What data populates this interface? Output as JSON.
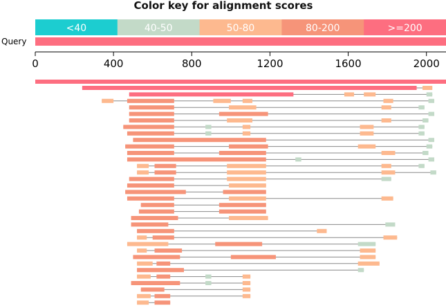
{
  "title": "Color key for alignment scores",
  "query_label": "Query",
  "colors": {
    "lt40": "#1ccdd0",
    "40_50": "#c3dac8",
    "50_80": "#fdb98f",
    "80_200": "#f69479",
    "ge200": "#fd6e80",
    "connector": "#888888",
    "axis": "#000000"
  },
  "legend": [
    {
      "label": "<40",
      "color_key": "lt40"
    },
    {
      "label": "40-50",
      "color_key": "40_50"
    },
    {
      "label": "50-80",
      "color_key": "50_80"
    },
    {
      "label": "80-200",
      "color_key": "80_200"
    },
    {
      "label": ">=200",
      "color_key": "ge200"
    }
  ],
  "chart_data": {
    "type": "alignment-map",
    "x_axis": {
      "min": 0,
      "max": 2100,
      "ticks": [
        0,
        400,
        800,
        1200,
        1600,
        2000
      ]
    },
    "query_length": 2100,
    "hits": [
      {
        "segments": [
          [
            0,
            2100,
            "ge200"
          ]
        ]
      },
      {
        "segments": [
          [
            240,
            1950,
            "ge200"
          ],
          [
            1980,
            2030,
            "50_80"
          ]
        ]
      },
      {
        "segments": [
          [
            480,
            1320,
            "ge200"
          ],
          [
            1580,
            1630,
            "50_80"
          ],
          [
            1680,
            1740,
            "50_80"
          ],
          [
            2000,
            2030,
            "40_50"
          ]
        ]
      },
      {
        "segments": [
          [
            340,
            400,
            "50_80"
          ],
          [
            470,
            710,
            "80_200"
          ],
          [
            910,
            1000,
            "50_80"
          ],
          [
            1060,
            1110,
            "50_80"
          ],
          [
            1780,
            1830,
            "50_80"
          ],
          [
            2010,
            2040,
            "40_50"
          ]
        ]
      },
      {
        "segments": [
          [
            480,
            710,
            "80_200"
          ],
          [
            990,
            1130,
            "50_80"
          ],
          [
            1770,
            1820,
            "50_80"
          ],
          [
            1960,
            1990,
            "40_50"
          ]
        ]
      },
      {
        "segments": [
          [
            480,
            710,
            "80_200"
          ],
          [
            940,
            1190,
            "80_200"
          ],
          [
            2010,
            2040,
            "40_50"
          ]
        ]
      },
      {
        "segments": [
          [
            480,
            710,
            "80_200"
          ],
          [
            980,
            1110,
            "50_80"
          ],
          [
            1770,
            1820,
            "50_80"
          ],
          [
            1980,
            2010,
            "40_50"
          ]
        ]
      },
      {
        "segments": [
          [
            450,
            710,
            "80_200"
          ],
          [
            870,
            900,
            "40_50"
          ],
          [
            1060,
            1100,
            "50_80"
          ],
          [
            1660,
            1730,
            "50_80"
          ],
          [
            1960,
            1990,
            "40_50"
          ]
        ]
      },
      {
        "segments": [
          [
            470,
            710,
            "80_200"
          ],
          [
            870,
            900,
            "40_50"
          ],
          [
            1060,
            1100,
            "50_80"
          ],
          [
            1660,
            1730,
            "50_80"
          ],
          [
            1960,
            1990,
            "40_50"
          ]
        ]
      },
      {
        "segments": [
          [
            500,
            1180,
            "80_200"
          ],
          [
            2010,
            2040,
            "40_50"
          ]
        ]
      },
      {
        "segments": [
          [
            460,
            710,
            "80_200"
          ],
          [
            990,
            1190,
            "80_200"
          ],
          [
            1650,
            1740,
            "50_80"
          ],
          [
            2000,
            2030,
            "40_50"
          ]
        ]
      },
      {
        "segments": [
          [
            470,
            710,
            "80_200"
          ],
          [
            940,
            1180,
            "80_200"
          ],
          [
            1770,
            1840,
            "50_80"
          ],
          [
            1980,
            2010,
            "40_50"
          ]
        ]
      },
      {
        "segments": [
          [
            470,
            1180,
            "80_200"
          ],
          [
            1330,
            1360,
            "40_50"
          ],
          [
            2010,
            2040,
            "40_50"
          ]
        ]
      },
      {
        "segments": [
          [
            520,
            580,
            "50_80"
          ],
          [
            610,
            720,
            "80_200"
          ],
          [
            980,
            1180,
            "50_80"
          ],
          [
            1770,
            1820,
            "50_80"
          ],
          [
            1960,
            1990,
            "40_50"
          ]
        ]
      },
      {
        "segments": [
          [
            520,
            580,
            "50_80"
          ],
          [
            610,
            720,
            "80_200"
          ],
          [
            980,
            1180,
            "50_80"
          ],
          [
            1770,
            1840,
            "50_80"
          ],
          [
            2020,
            2050,
            "40_50"
          ]
        ]
      },
      {
        "segments": [
          [
            480,
            710,
            "80_200"
          ],
          [
            980,
            1180,
            "50_80"
          ],
          [
            1770,
            1820,
            "40_50"
          ]
        ]
      },
      {
        "segments": [
          [
            470,
            710,
            "80_200"
          ],
          [
            990,
            1180,
            "50_80"
          ]
        ]
      },
      {
        "segments": [
          [
            460,
            770,
            "80_200"
          ],
          [
            960,
            1180,
            "80_200"
          ]
        ]
      },
      {
        "segments": [
          [
            470,
            710,
            "80_200"
          ],
          [
            990,
            1180,
            "50_80"
          ],
          [
            1770,
            1830,
            "50_80"
          ]
        ]
      },
      {
        "segments": [
          [
            540,
            710,
            "80_200"
          ],
          [
            940,
            1180,
            "80_200"
          ]
        ]
      },
      {
        "segments": [
          [
            530,
            710,
            "80_200"
          ],
          [
            940,
            1180,
            "80_200"
          ]
        ]
      },
      {
        "segments": [
          [
            490,
            730,
            "80_200"
          ],
          [
            990,
            1190,
            "50_80"
          ]
        ]
      },
      {
        "segments": [
          [
            490,
            680,
            "80_200"
          ],
          [
            1790,
            1840,
            "40_50"
          ]
        ]
      },
      {
        "segments": [
          [
            520,
            710,
            "80_200"
          ],
          [
            1440,
            1490,
            "50_80"
          ]
        ]
      },
      {
        "segments": [
          [
            520,
            570,
            "50_80"
          ],
          [
            600,
            710,
            "80_200"
          ],
          [
            1780,
            1850,
            "50_80"
          ]
        ]
      },
      {
        "segments": [
          [
            470,
            680,
            "50_80"
          ],
          [
            920,
            1160,
            "80_200"
          ],
          [
            1650,
            1740,
            "40_50"
          ]
        ]
      },
      {
        "segments": [
          [
            520,
            570,
            "50_80"
          ],
          [
            610,
            750,
            "80_200"
          ],
          [
            1660,
            1740,
            "50_80"
          ]
        ]
      },
      {
        "segments": [
          [
            500,
            740,
            "80_200"
          ],
          [
            1000,
            1230,
            "80_200"
          ],
          [
            1660,
            1740,
            "50_80"
          ]
        ]
      },
      {
        "segments": [
          [
            520,
            600,
            "50_80"
          ],
          [
            620,
            690,
            "80_200"
          ],
          [
            1650,
            1760,
            "50_80"
          ]
        ]
      },
      {
        "segments": [
          [
            520,
            760,
            "80_200"
          ],
          [
            1650,
            1680,
            "40_50"
          ]
        ]
      },
      {
        "segments": [
          [
            520,
            590,
            "50_80"
          ],
          [
            620,
            690,
            "80_200"
          ],
          [
            870,
            900,
            "40_50"
          ],
          [
            1060,
            1100,
            "50_80"
          ]
        ]
      },
      {
        "segments": [
          [
            490,
            740,
            "80_200"
          ],
          [
            870,
            900,
            "40_50"
          ],
          [
            1060,
            1100,
            "50_80"
          ]
        ]
      },
      {
        "segments": [
          [
            540,
            660,
            "80_200"
          ],
          [
            1060,
            1100,
            "50_80"
          ]
        ]
      },
      {
        "segments": [
          [
            520,
            590,
            "50_80"
          ],
          [
            610,
            690,
            "80_200"
          ],
          [
            1060,
            1100,
            "50_80"
          ]
        ]
      },
      {
        "segments": [
          [
            520,
            580,
            "50_80"
          ],
          [
            610,
            690,
            "80_200"
          ]
        ]
      }
    ]
  }
}
